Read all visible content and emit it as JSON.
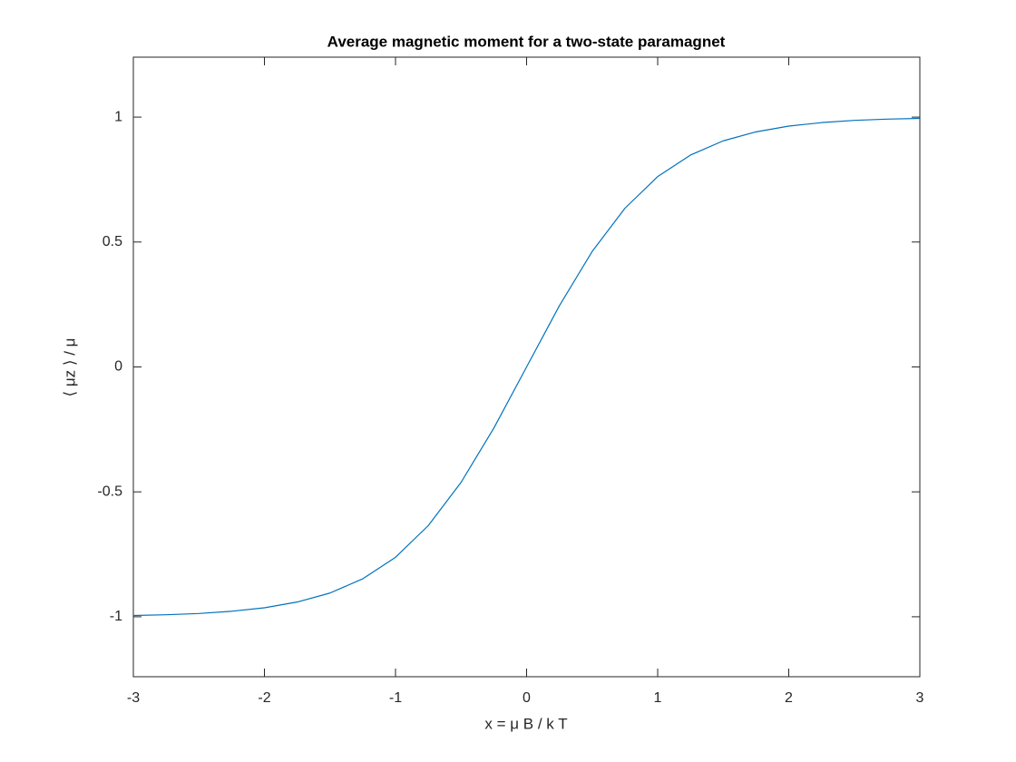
{
  "chart_data": {
    "type": "line",
    "title": "Average magnetic moment for a two-state paramagnet",
    "xlabel": "x = μ B / k T",
    "ylabel": "⟨ μz ⟩ / μ",
    "x": [
      -3,
      -2.75,
      -2.5,
      -2.25,
      -2,
      -1.75,
      -1.5,
      -1.25,
      -1,
      -0.75,
      -0.5,
      -0.25,
      0,
      0.25,
      0.5,
      0.75,
      1,
      1.25,
      1.5,
      1.75,
      2,
      2.25,
      2.5,
      2.75,
      3
    ],
    "values": [
      -0.995,
      -0.992,
      -0.987,
      -0.978,
      -0.964,
      -0.941,
      -0.905,
      -0.848,
      -0.762,
      -0.635,
      -0.462,
      -0.245,
      0,
      0.245,
      0.462,
      0.635,
      0.762,
      0.848,
      0.905,
      0.941,
      0.964,
      0.978,
      0.987,
      0.992,
      0.995
    ],
    "color": "#0072bd",
    "xlim": [
      -3,
      3
    ],
    "xticks": [
      -3,
      -2,
      -1,
      0,
      1,
      2,
      3
    ],
    "ylim": [
      -1.24,
      1.24
    ],
    "yticks": [
      -1,
      -0.5,
      0,
      0.5,
      1
    ],
    "grid": false
  }
}
